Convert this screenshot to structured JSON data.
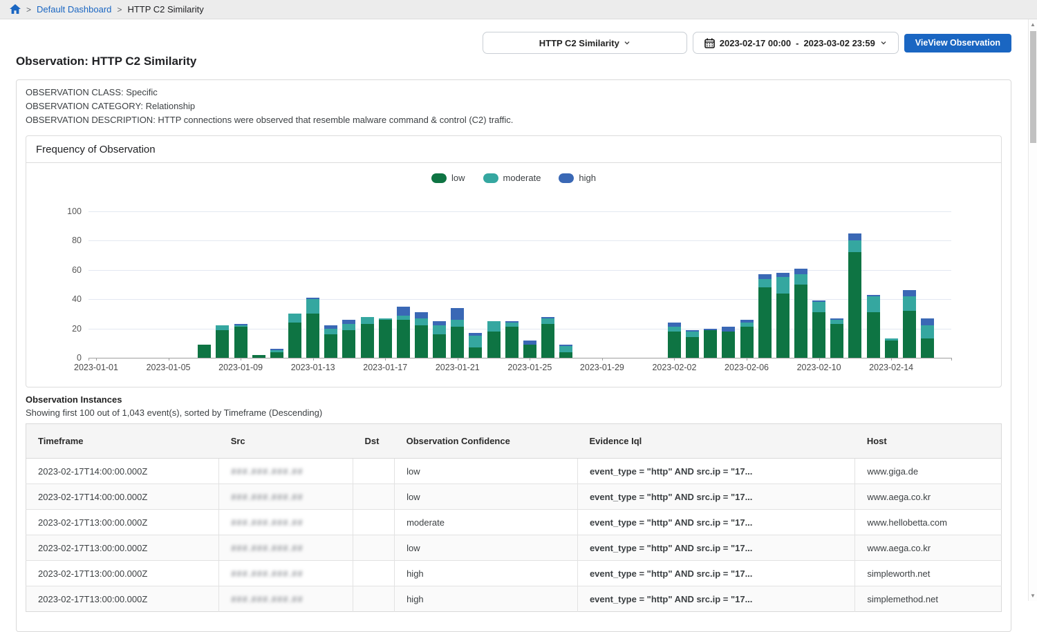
{
  "breadcrumb": {
    "link": "Default Dashboard",
    "separator": ">",
    "current": "HTTP C2 Similarity"
  },
  "toolbar": {
    "observation_select": {
      "value": "HTTP C2 Similarity"
    },
    "date_range": {
      "start": "2023-02-17 00:00",
      "separator": "-",
      "end": "2023-03-02 23:59"
    },
    "view_button": "VieView Observation"
  },
  "page": {
    "title": "Observation: HTTP C2 Similarity",
    "meta": [
      "OBSERVATION CLASS: Specific",
      "OBSERVATION CATEGORY: Relationship",
      "OBSERVATION DESCRIPTION: HTTP connections were observed that resemble malware command & control (C2) traffic."
    ]
  },
  "chart_card": {
    "title": "Frequency of Observation"
  },
  "chart_data": {
    "type": "bar",
    "stacked": true,
    "title": "Frequency of Observation",
    "legend": [
      {
        "name": "low",
        "color": "#0e7443"
      },
      {
        "name": "moderate",
        "color": "#35a7a0"
      },
      {
        "name": "high",
        "color": "#3a68b5"
      }
    ],
    "ylim": [
      0,
      100
    ],
    "yticks": [
      0,
      20,
      40,
      60,
      80,
      100
    ],
    "grid": true,
    "legend_position": "top-center",
    "x_start": "2023-01-01",
    "x_tick_labels": [
      "2023-01-01",
      "2023-01-05",
      "2023-01-09",
      "2023-01-13",
      "2023-01-17",
      "2023-01-21",
      "2023-01-25",
      "2023-01-29",
      "2023-02-02",
      "2023-02-06",
      "2023-02-10",
      "2023-02-14"
    ],
    "bars": [
      {
        "date": "2023-01-07",
        "low": 9,
        "moderate": 0,
        "high": 0
      },
      {
        "date": "2023-01-08",
        "low": 19,
        "moderate": 3,
        "high": 0
      },
      {
        "date": "2023-01-09",
        "low": 21,
        "moderate": 1,
        "high": 1
      },
      {
        "date": "2023-01-10",
        "low": 2,
        "moderate": 0,
        "high": 0
      },
      {
        "date": "2023-01-11",
        "low": 4,
        "moderate": 1,
        "high": 1
      },
      {
        "date": "2023-01-12",
        "low": 24,
        "moderate": 6,
        "high": 0
      },
      {
        "date": "2023-01-13",
        "low": 30,
        "moderate": 10,
        "high": 1
      },
      {
        "date": "2023-01-14",
        "low": 16,
        "moderate": 4,
        "high": 2
      },
      {
        "date": "2023-01-15",
        "low": 19,
        "moderate": 4,
        "high": 3
      },
      {
        "date": "2023-01-16",
        "low": 23,
        "moderate": 5,
        "high": 0
      },
      {
        "date": "2023-01-17",
        "low": 26,
        "moderate": 1,
        "high": 0
      },
      {
        "date": "2023-01-18",
        "low": 26,
        "moderate": 3,
        "high": 6
      },
      {
        "date": "2023-01-19",
        "low": 22,
        "moderate": 5,
        "high": 4
      },
      {
        "date": "2023-01-20",
        "low": 16,
        "moderate": 6,
        "high": 3
      },
      {
        "date": "2023-01-21",
        "low": 21,
        "moderate": 5,
        "high": 8
      },
      {
        "date": "2023-01-22",
        "low": 7,
        "moderate": 8,
        "high": 2
      },
      {
        "date": "2023-01-23",
        "low": 18,
        "moderate": 7,
        "high": 0
      },
      {
        "date": "2023-01-24",
        "low": 21,
        "moderate": 3,
        "high": 1
      },
      {
        "date": "2023-01-25",
        "low": 9,
        "moderate": 0,
        "high": 3
      },
      {
        "date": "2023-01-26",
        "low": 23,
        "moderate": 4,
        "high": 1
      },
      {
        "date": "2023-01-27",
        "low": 4,
        "moderate": 4,
        "high": 1
      },
      {
        "date": "2023-02-02",
        "low": 18,
        "moderate": 3,
        "high": 3
      },
      {
        "date": "2023-02-03",
        "low": 14,
        "moderate": 4,
        "high": 1
      },
      {
        "date": "2023-02-04",
        "low": 19,
        "moderate": 0,
        "high": 1
      },
      {
        "date": "2023-02-05",
        "low": 18,
        "moderate": 0,
        "high": 3
      },
      {
        "date": "2023-02-06",
        "low": 21,
        "moderate": 3,
        "high": 2
      },
      {
        "date": "2023-02-07",
        "low": 48,
        "moderate": 6,
        "high": 3
      },
      {
        "date": "2023-02-08",
        "low": 44,
        "moderate": 11,
        "high": 3
      },
      {
        "date": "2023-02-09",
        "low": 50,
        "moderate": 7,
        "high": 4
      },
      {
        "date": "2023-02-10",
        "low": 31,
        "moderate": 7,
        "high": 1
      },
      {
        "date": "2023-02-11",
        "low": 23,
        "moderate": 3,
        "high": 1
      },
      {
        "date": "2023-02-12",
        "low": 72,
        "moderate": 8,
        "high": 5
      },
      {
        "date": "2023-02-13",
        "low": 31,
        "moderate": 11,
        "high": 1
      },
      {
        "date": "2023-02-14",
        "low": 12,
        "moderate": 1,
        "high": 0
      },
      {
        "date": "2023-02-15",
        "low": 32,
        "moderate": 10,
        "high": 4
      },
      {
        "date": "2023-02-16",
        "low": 13,
        "moderate": 9,
        "high": 5
      }
    ]
  },
  "instances": {
    "heading": "Observation Instances",
    "subheading": "Showing first 100 out of 1,043 event(s), sorted by Timeframe (Descending)",
    "columns": [
      "Timeframe",
      "Src",
      "Dst",
      "Observation Confidence",
      "Evidence Iql",
      "Host"
    ],
    "rows": [
      {
        "timeframe": "2023-02-17T14:00:00.000Z",
        "src": "###.###.###.##",
        "dst": "",
        "confidence": "low",
        "evidence": "event_type = \"http\" AND src.ip = \"17...",
        "host": "www.giga.de"
      },
      {
        "timeframe": "2023-02-17T14:00:00.000Z",
        "src": "###.###.###.##",
        "dst": "",
        "confidence": "low",
        "evidence": "event_type = \"http\" AND src.ip = \"17...",
        "host": "www.aega.co.kr"
      },
      {
        "timeframe": "2023-02-17T13:00:00.000Z",
        "src": "###.###.###.##",
        "dst": "",
        "confidence": "moderate",
        "evidence": "event_type = \"http\" AND src.ip = \"17...",
        "host": "www.hellobetta.com"
      },
      {
        "timeframe": "2023-02-17T13:00:00.000Z",
        "src": "###.###.###.##",
        "dst": "",
        "confidence": "low",
        "evidence": "event_type = \"http\" AND src.ip = \"17...",
        "host": "www.aega.co.kr"
      },
      {
        "timeframe": "2023-02-17T13:00:00.000Z",
        "src": "###.###.###.##",
        "dst": "",
        "confidence": "high",
        "evidence": "event_type = \"http\" AND src.ip = \"17...",
        "host": "simpleworth.net"
      },
      {
        "timeframe": "2023-02-17T13:00:00.000Z",
        "src": "###.###.###.##",
        "dst": "",
        "confidence": "high",
        "evidence": "event_type = \"http\" AND src.ip = \"17...",
        "host": "simplemethod.net"
      }
    ]
  }
}
